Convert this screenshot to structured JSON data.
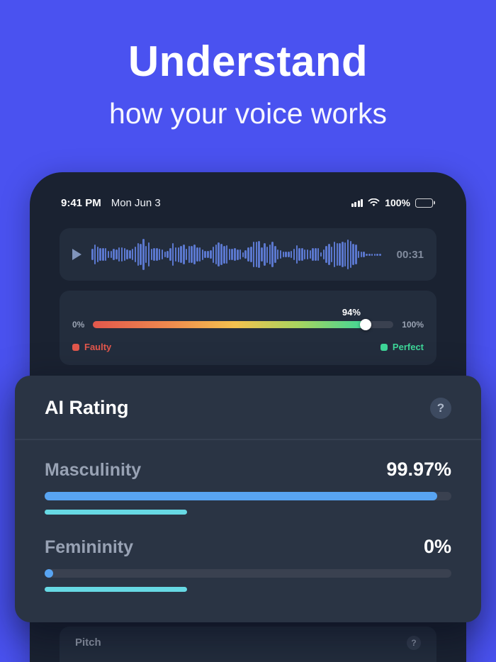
{
  "colors": {
    "background": "#4a52f0",
    "phone_bg": "#1a2231",
    "card_bg": "#232d3d",
    "panel_bg": "#2a3444",
    "bar_track": "#3a4150",
    "bar_fill_blue": "#58a4f2",
    "underline_cyan": "#67d9e4",
    "waveform_blue": "#5b78cf"
  },
  "hero": {
    "title": "Understand",
    "subtitle": "how your voice works"
  },
  "statusbar": {
    "time": "9:41 PM",
    "date": "Mon Jun 3",
    "battery": "100%"
  },
  "player": {
    "duration": "00:31"
  },
  "quality": {
    "value": "94%",
    "bar_percent": 91,
    "label_percent": 86,
    "min": "0%",
    "max": "100%",
    "legend": [
      {
        "label": "Faulty",
        "color": "#e2574c"
      },
      {
        "label": "Perfect",
        "color": "#3ed598"
      }
    ]
  },
  "ai_rating": {
    "title": "AI Rating",
    "help": "?",
    "metrics": [
      {
        "label": "Masculinity",
        "value": "99.97%",
        "bar_percent": 96.5,
        "underline_percent": 35
      },
      {
        "label": "Femininity",
        "value": "0%",
        "bar_percent": 0,
        "underline_percent": 35
      }
    ]
  },
  "pitch": {
    "label": "Pitch",
    "help": "?"
  }
}
